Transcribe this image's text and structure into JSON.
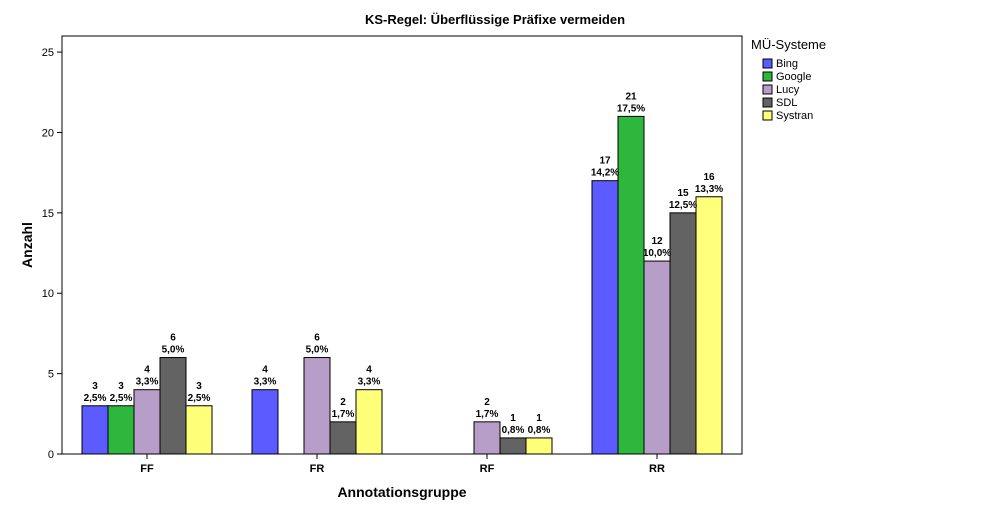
{
  "chart_data": {
    "type": "bar",
    "title": "KS-Regel: Überflüssige Präfixe vermeiden",
    "xlabel": "Annotationsgruppe",
    "ylabel": "Anzahl",
    "ylim": [
      0,
      26
    ],
    "yticks": [
      0,
      5,
      10,
      15,
      20,
      25
    ],
    "grid": false,
    "legend_title": "MÜ-Systeme",
    "legend_position": "right",
    "categories": [
      "FF",
      "FR",
      "RF",
      "RR"
    ],
    "series": [
      {
        "name": "Bing",
        "color": "#5b5bff",
        "values": [
          3,
          4,
          null,
          17
        ],
        "labels": [
          [
            "3",
            "2,5%"
          ],
          [
            "4",
            "3,3%"
          ],
          null,
          [
            "17",
            "14,2%"
          ]
        ]
      },
      {
        "name": "Google",
        "color": "#2db83d",
        "values": [
          3,
          null,
          null,
          21
        ],
        "labels": [
          [
            "3",
            "2,5%"
          ],
          null,
          null,
          [
            "21",
            "17,5%"
          ]
        ]
      },
      {
        "name": "Lucy",
        "color": "#b79ec9",
        "values": [
          4,
          6,
          2,
          12
        ],
        "labels": [
          [
            "4",
            "3,3%"
          ],
          [
            "6",
            "5,0%"
          ],
          [
            "2",
            "1,7%"
          ],
          [
            "12",
            "10,0%"
          ]
        ]
      },
      {
        "name": "SDL",
        "color": "#636363",
        "values": [
          6,
          2,
          1,
          15
        ],
        "labels": [
          [
            "6",
            "5,0%"
          ],
          [
            "2",
            "1,7%"
          ],
          [
            "1",
            "0,8%"
          ],
          [
            "15",
            "12,5%"
          ]
        ]
      },
      {
        "name": "Systran",
        "color": "#ffff7a",
        "values": [
          3,
          4,
          1,
          16
        ],
        "labels": [
          [
            "3",
            "2,5%"
          ],
          [
            "4",
            "3,3%"
          ],
          [
            "1",
            "0,8%"
          ],
          [
            "16",
            "13,3%"
          ]
        ]
      }
    ]
  }
}
